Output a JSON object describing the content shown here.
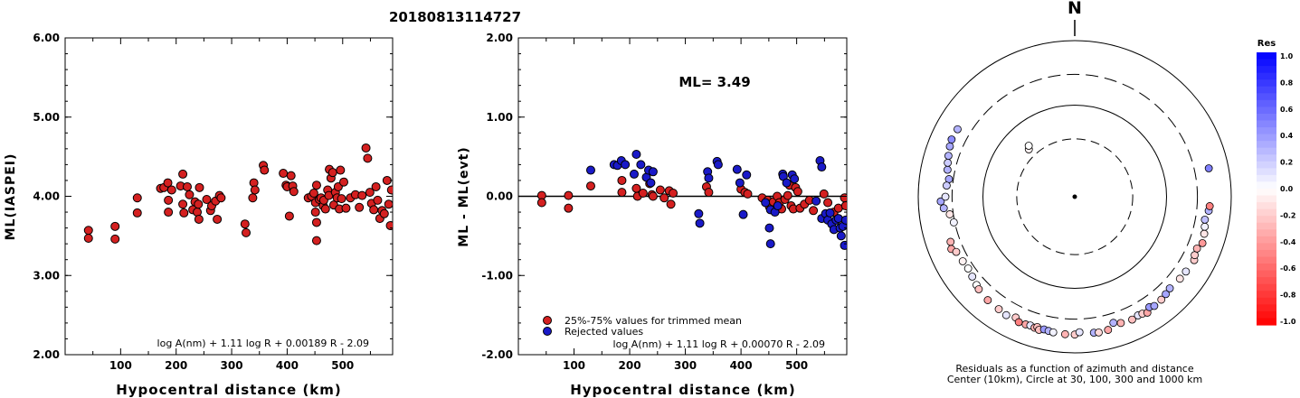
{
  "title": "20180813114727",
  "colors": {
    "trimmed": "#d42020",
    "rejected": "#1a1ac8"
  },
  "chart_data": [
    {
      "type": "scatter",
      "xlabel": "Hypocentral distance (km)",
      "ylabel": "ML(IASPEI)",
      "xlim": [
        0,
        590
      ],
      "ylim": [
        2.0,
        6.0
      ],
      "xticks": [
        "100",
        "200",
        "300",
        "400",
        "500"
      ],
      "yticks": [
        "2.00",
        "3.00",
        "4.00",
        "5.00",
        "6.00"
      ],
      "formula": "log A(nm) + 1.11 log R + 0.00189 R - 2.09",
      "points": [
        [
          42,
          3.57
        ],
        [
          42,
          3.47
        ],
        [
          90,
          3.62
        ],
        [
          90,
          3.46
        ],
        [
          130,
          3.98
        ],
        [
          130,
          3.79
        ],
        [
          172,
          4.1
        ],
        [
          178,
          4.11
        ],
        [
          185,
          4.17
        ],
        [
          186,
          3.95
        ],
        [
          186,
          3.8
        ],
        [
          192,
          4.08
        ],
        [
          208,
          4.13
        ],
        [
          212,
          4.28
        ],
        [
          212,
          3.9
        ],
        [
          214,
          3.79
        ],
        [
          220,
          4.12
        ],
        [
          224,
          4.02
        ],
        [
          230,
          3.83
        ],
        [
          234,
          3.93
        ],
        [
          238,
          3.8
        ],
        [
          240,
          3.9
        ],
        [
          241,
          3.71
        ],
        [
          242,
          4.11
        ],
        [
          255,
          3.96
        ],
        [
          262,
          3.82
        ],
        [
          264,
          3.88
        ],
        [
          271,
          3.94
        ],
        [
          274,
          3.71
        ],
        [
          278,
          4.01
        ],
        [
          281,
          3.98
        ],
        [
          324,
          3.65
        ],
        [
          326,
          3.54
        ],
        [
          338,
          3.98
        ],
        [
          340,
          4.17
        ],
        [
          342,
          4.08
        ],
        [
          357,
          4.39
        ],
        [
          359,
          4.33
        ],
        [
          393,
          4.29
        ],
        [
          398,
          4.14
        ],
        [
          400,
          4.12
        ],
        [
          404,
          3.75
        ],
        [
          407,
          4.26
        ],
        [
          410,
          4.13
        ],
        [
          412,
          4.06
        ],
        [
          438,
          3.98
        ],
        [
          444,
          4.0
        ],
        [
          448,
          4.04
        ],
        [
          451,
          3.92
        ],
        [
          451,
          3.8
        ],
        [
          453,
          3.67
        ],
        [
          453,
          3.44
        ],
        [
          453,
          4.14
        ],
        [
          458,
          3.96
        ],
        [
          461,
          3.98
        ],
        [
          465,
          3.88
        ],
        [
          466,
          3.95
        ],
        [
          469,
          3.84
        ],
        [
          473,
          4.08
        ],
        [
          475,
          4.01
        ],
        [
          476,
          4.34
        ],
        [
          479,
          4.23
        ],
        [
          482,
          4.3
        ],
        [
          484,
          3.89
        ],
        [
          487,
          4.05
        ],
        [
          490,
          3.98
        ],
        [
          492,
          4.12
        ],
        [
          494,
          3.84
        ],
        [
          496,
          4.33
        ],
        [
          498,
          3.97
        ],
        [
          502,
          4.18
        ],
        [
          506,
          3.85
        ],
        [
          514,
          3.98
        ],
        [
          523,
          4.02
        ],
        [
          530,
          3.86
        ],
        [
          535,
          4.01
        ],
        [
          542,
          4.61
        ],
        [
          545,
          4.48
        ],
        [
          549,
          4.05
        ],
        [
          552,
          3.91
        ],
        [
          556,
          3.83
        ],
        [
          560,
          4.12
        ],
        [
          563,
          3.95
        ],
        [
          567,
          3.72
        ],
        [
          571,
          3.82
        ],
        [
          575,
          3.78
        ],
        [
          580,
          4.2
        ],
        [
          583,
          3.9
        ],
        [
          586,
          3.63
        ],
        [
          588,
          4.08
        ]
      ]
    },
    {
      "type": "scatter",
      "xlabel": "Hypocentral distance (km)",
      "ylabel": "ML - ML(evt)",
      "xlim": [
        0,
        590
      ],
      "ylim": [
        -2.0,
        2.0
      ],
      "xticks": [
        "100",
        "200",
        "300",
        "400",
        "500"
      ],
      "yticks": [
        "-2.00",
        "-1.00",
        "0.00",
        "1.00",
        "2.00"
      ],
      "annotation": "ML= 3.49",
      "legend": [
        "25%-75% values for trimmed mean",
        "Rejected values"
      ],
      "formula": "log A(nm) + 1.11 log R + 0.00070 R - 2.09",
      "series": [
        {
          "name": "25%-75% values for trimmed mean",
          "points": [
            [
              42,
              0.01
            ],
            [
              42,
              -0.08
            ],
            [
              90,
              0.01
            ],
            [
              90,
              -0.15
            ],
            [
              130,
              0.13
            ],
            [
              186,
              0.2
            ],
            [
              186,
              0.05
            ],
            [
              212,
              0.1
            ],
            [
              214,
              0.0
            ],
            [
              224,
              0.04
            ],
            [
              236,
              0.16
            ],
            [
              240,
              0.02
            ],
            [
              242,
              0.0
            ],
            [
              255,
              0.08
            ],
            [
              262,
              -0.02
            ],
            [
              271,
              0.07
            ],
            [
              274,
              -0.1
            ],
            [
              278,
              0.04
            ],
            [
              338,
              0.12
            ],
            [
              342,
              0.05
            ],
            [
              400,
              0.09
            ],
            [
              407,
              0.05
            ],
            [
              412,
              0.03
            ],
            [
              438,
              -0.02
            ],
            [
              448,
              -0.05
            ],
            [
              451,
              -0.13
            ],
            [
              458,
              -0.07
            ],
            [
              465,
              0.0
            ],
            [
              469,
              -0.08
            ],
            [
              473,
              -0.16
            ],
            [
              479,
              -0.04
            ],
            [
              484,
              0.01
            ],
            [
              487,
              0.14
            ],
            [
              490,
              -0.12
            ],
            [
              494,
              -0.16
            ],
            [
              498,
              0.11
            ],
            [
              502,
              0.06
            ],
            [
              506,
              -0.15
            ],
            [
              514,
              -0.1
            ],
            [
              523,
              -0.05
            ],
            [
              530,
              -0.18
            ],
            [
              549,
              0.03
            ],
            [
              556,
              -0.08
            ],
            [
              567,
              -0.2
            ],
            [
              575,
              -0.15
            ],
            [
              586,
              -0.02
            ],
            [
              588,
              -0.12
            ]
          ]
        },
        {
          "name": "Rejected values",
          "points": [
            [
              130,
              0.33
            ],
            [
              172,
              0.4
            ],
            [
              178,
              0.39
            ],
            [
              185,
              0.45
            ],
            [
              192,
              0.4
            ],
            [
              208,
              0.28
            ],
            [
              212,
              0.53
            ],
            [
              220,
              0.4
            ],
            [
              230,
              0.24
            ],
            [
              234,
              0.33
            ],
            [
              238,
              0.17
            ],
            [
              242,
              0.31
            ],
            [
              324,
              -0.22
            ],
            [
              326,
              -0.34
            ],
            [
              340,
              0.31
            ],
            [
              342,
              0.23
            ],
            [
              357,
              0.44
            ],
            [
              359,
              0.4
            ],
            [
              393,
              0.34
            ],
            [
              398,
              0.17
            ],
            [
              404,
              -0.23
            ],
            [
              410,
              0.27
            ],
            [
              444,
              -0.08
            ],
            [
              451,
              -0.4
            ],
            [
              453,
              -0.6
            ],
            [
              453,
              -0.17
            ],
            [
              461,
              -0.2
            ],
            [
              466,
              -0.12
            ],
            [
              475,
              0.28
            ],
            [
              476,
              0.25
            ],
            [
              482,
              0.17
            ],
            [
              492,
              0.27
            ],
            [
              496,
              0.22
            ],
            [
              535,
              -0.06
            ],
            [
              542,
              0.45
            ],
            [
              545,
              0.37
            ],
            [
              545,
              -0.28
            ],
            [
              552,
              -0.22
            ],
            [
              556,
              -0.3
            ],
            [
              560,
              -0.21
            ],
            [
              563,
              -0.35
            ],
            [
              567,
              -0.42
            ],
            [
              571,
              -0.3
            ],
            [
              575,
              -0.28
            ],
            [
              578,
              -0.4
            ],
            [
              580,
              -0.5
            ],
            [
              583,
              -0.38
            ],
            [
              586,
              -0.62
            ],
            [
              588,
              -0.3
            ]
          ]
        }
      ]
    },
    {
      "type": "scatter",
      "subtype": "polar",
      "north_label": "N",
      "caption_line1": "Residuals as a function of azimuth and distance",
      "caption_line2": "Center (10km), Circle at 30, 100, 300 and 1000 km",
      "colorbar_title": "Res",
      "colorbar_ticks": [
        "1.0",
        "0.8",
        "0.6",
        "0.4",
        "0.2",
        "0.0",
        "-0.2",
        "-0.4",
        "-0.6",
        "-0.8",
        "-1.0"
      ],
      "rings_km": [
        30,
        100,
        300,
        1000
      ],
      "points_az_dist_res": [
        [
          316,
          40,
          -0.05
        ],
        [
          318,
          44,
          0.0
        ],
        [
          295,
          480,
          0.45
        ],
        [
          300,
          470,
          0.3
        ],
        [
          288,
          430,
          0.3
        ],
        [
          292,
          460,
          0.35
        ],
        [
          282,
          390,
          0.3
        ],
        [
          285,
          410,
          0.2
        ],
        [
          278,
          350,
          0.35
        ],
        [
          275,
          370,
          0.2
        ],
        [
          262,
          340,
          -0.1
        ],
        [
          258,
          310,
          0.05
        ],
        [
          265,
          410,
          0.3
        ],
        [
          268,
          450,
          0.35
        ],
        [
          270,
          380,
          0.1
        ],
        [
          250,
          420,
          -0.3
        ],
        [
          247,
          450,
          -0.35
        ],
        [
          245,
          400,
          -0.2
        ],
        [
          240,
          380,
          -0.05
        ],
        [
          236,
          370,
          0.0
        ],
        [
          232,
          390,
          0.1
        ],
        [
          228,
          420,
          0.0
        ],
        [
          226,
          440,
          -0.25
        ],
        [
          220,
          470,
          -0.35
        ],
        [
          214,
          480,
          -0.2
        ],
        [
          210,
          500,
          0.1
        ],
        [
          206,
          460,
          -0.2
        ],
        [
          204,
          510,
          -0.5
        ],
        [
          201,
          500,
          -0.35
        ],
        [
          199,
          490,
          0.1
        ],
        [
          197,
          505,
          -0.3
        ],
        [
          196,
          480,
          -0.25
        ],
        [
          195,
          520,
          -0.25
        ],
        [
          193,
          490,
          0.4
        ],
        [
          191,
          500,
          0.3
        ],
        [
          189,
          510,
          0.05
        ],
        [
          184,
          520,
          -0.3
        ],
        [
          180,
          520,
          -0.2
        ],
        [
          178,
          480,
          0.1
        ],
        [
          172,
          510,
          0.3
        ],
        [
          170,
          520,
          -0.15
        ],
        [
          166,
          510,
          -0.35
        ],
        [
          163,
          420,
          0.3
        ],
        [
          160,
          460,
          -0.3
        ],
        [
          155,
          480,
          -0.25
        ],
        [
          152,
          460,
          0.1
        ],
        [
          150,
          470,
          -0.2
        ],
        [
          148,
          500,
          -0.35
        ],
        [
          146,
          440,
          0.4
        ],
        [
          144,
          470,
          0.35
        ],
        [
          140,
          460,
          -0.2
        ],
        [
          137,
          440,
          0.35
        ],
        [
          134,
          420,
          0.3
        ],
        [
          128,
          440,
          -0.1
        ],
        [
          124,
          450,
          0.1
        ],
        [
          118,
          470,
          -0.2
        ],
        [
          116,
          440,
          -0.2
        ],
        [
          113,
          430,
          -0.3
        ],
        [
          110,
          480,
          -0.4
        ],
        [
          106,
          460,
          -0.1
        ],
        [
          103,
          440,
          0.05
        ],
        [
          100,
          420,
          0.25
        ],
        [
          96,
          460,
          0.3
        ],
        [
          94,
          470,
          -0.5
        ],
        [
          78,
          500,
          0.5
        ]
      ]
    }
  ]
}
